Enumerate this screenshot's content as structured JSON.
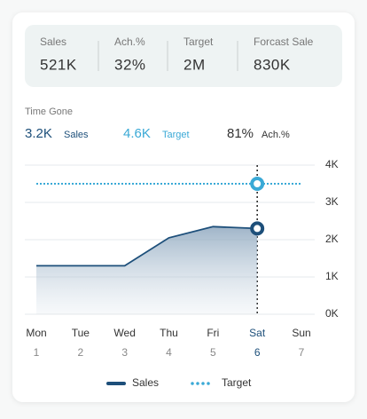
{
  "kpis": [
    {
      "label": "Sales",
      "value": "521K"
    },
    {
      "label": "Ach.%",
      "value": "32%"
    },
    {
      "label": "Target",
      "value": "2M"
    },
    {
      "label": "Forcast Sale",
      "value": "830K"
    }
  ],
  "time_gone": {
    "title": "Time Gone",
    "items": [
      {
        "value": "3.2K",
        "label": "Sales"
      },
      {
        "value": "4.6K",
        "label": "Target"
      },
      {
        "value": "81%",
        "label": "Ach.%"
      }
    ]
  },
  "chart_data": {
    "type": "line",
    "categories": [
      "Mon",
      "Tue",
      "Wed",
      "Thu",
      "Fri",
      "Sat",
      "Sun"
    ],
    "day_numbers": [
      1,
      2,
      3,
      4,
      5,
      6,
      7
    ],
    "highlight": 5,
    "series": [
      {
        "name": "Sales",
        "color": "#1d4f7a",
        "values": [
          1300,
          1300,
          1300,
          2050,
          2350,
          2300,
          null
        ]
      },
      {
        "name": "Target",
        "color": "#3aa9d6",
        "values": [
          3500,
          3500,
          3500,
          3500,
          3500,
          3500,
          3500
        ]
      }
    ],
    "ylim": [
      0,
      4000
    ],
    "yticks": [
      {
        "value": 0,
        "label": "0K"
      },
      {
        "value": 1000,
        "label": "1K"
      },
      {
        "value": 2000,
        "label": "2K"
      },
      {
        "value": 3000,
        "label": "3K"
      },
      {
        "value": 4000,
        "label": "4K"
      }
    ],
    "grid": true
  }
}
